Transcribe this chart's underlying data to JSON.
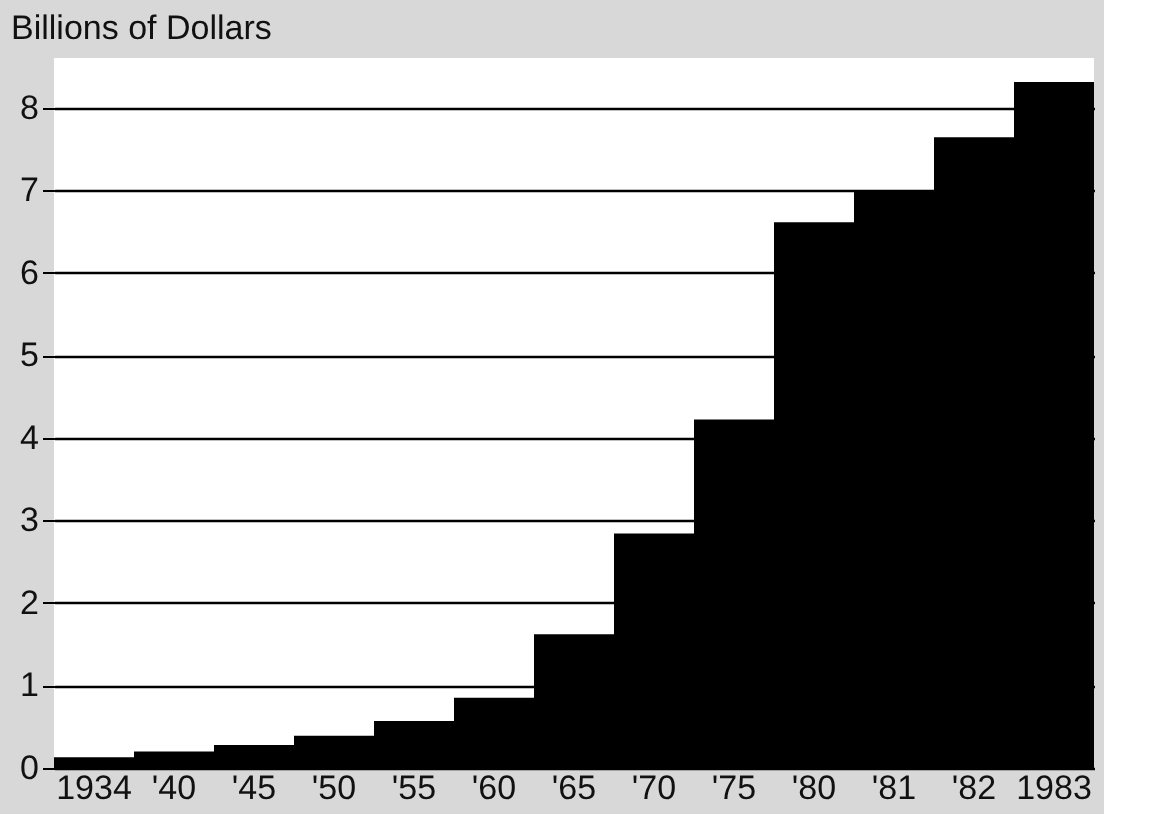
{
  "chart_data": {
    "type": "bar",
    "ylabel": "Billions of Dollars",
    "categories": [
      "1934",
      "'40",
      "'45",
      "'50",
      "'55",
      "'60",
      "'65",
      "'70",
      "'75",
      "'80",
      "'81",
      "'82",
      "1983"
    ],
    "values": [
      0.13,
      0.2,
      0.28,
      0.39,
      0.57,
      0.85,
      1.62,
      2.84,
      4.22,
      6.61,
      7.0,
      7.64,
      8.31
    ],
    "color": "#000000",
    "ylim": [
      0,
      8.6
    ],
    "yticks": [
      0,
      1,
      2,
      3,
      4,
      5,
      6,
      7,
      8
    ],
    "grid": "y"
  }
}
